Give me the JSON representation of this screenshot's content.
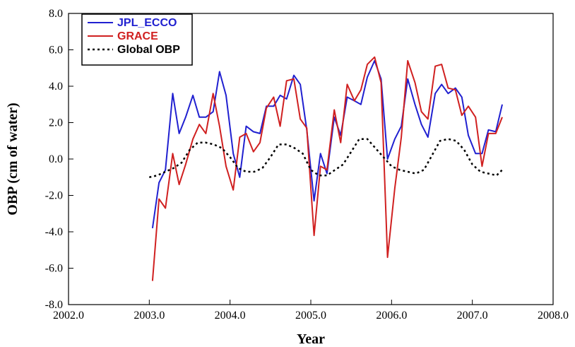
{
  "chart_data": {
    "type": "line",
    "xlabel": "Year",
    "ylabel": "OBP (cm of water)",
    "xlim": [
      2002.0,
      2008.0
    ],
    "ylim": [
      -8.0,
      8.0
    ],
    "x_ticks": [
      "2002.0",
      "2003.0",
      "2004.0",
      "2005.0",
      "2006.0",
      "2007.0",
      "2008.0"
    ],
    "y_ticks": [
      "8.0",
      "6.0",
      "4.0",
      "2.0",
      "0.0",
      "-2.0",
      "-4.0",
      "-6.0",
      "-8.0"
    ],
    "grid": false,
    "legend_position": "top-left",
    "series": [
      {
        "name": "JPL_ECCO",
        "color": "#2020d0",
        "style": "solid",
        "x": [
          2003.04,
          2003.12,
          2003.2,
          2003.29,
          2003.37,
          2003.45,
          2003.54,
          2003.62,
          2003.7,
          2003.79,
          2003.87,
          2003.95,
          2004.04,
          2004.12,
          2004.2,
          2004.29,
          2004.37,
          2004.45,
          2004.54,
          2004.62,
          2004.7,
          2004.79,
          2004.87,
          2004.95,
          2005.04,
          2005.12,
          2005.2,
          2005.29,
          2005.37,
          2005.45,
          2005.54,
          2005.62,
          2005.7,
          2005.79,
          2005.87,
          2005.95,
          2006.04,
          2006.12,
          2006.2,
          2006.29,
          2006.37,
          2006.45,
          2006.54,
          2006.62,
          2006.7,
          2006.79,
          2006.87,
          2006.95,
          2007.04,
          2007.12,
          2007.2,
          2007.29,
          2007.37
        ],
        "y": [
          -3.8,
          -1.3,
          -0.6,
          3.6,
          1.4,
          2.3,
          3.5,
          2.3,
          2.3,
          2.6,
          4.8,
          3.5,
          0.3,
          -1.0,
          1.8,
          1.5,
          1.4,
          2.9,
          2.9,
          3.5,
          3.3,
          4.6,
          4.1,
          1.6,
          -2.3,
          0.3,
          -0.8,
          2.3,
          1.3,
          3.4,
          3.2,
          3.0,
          4.5,
          5.4,
          4.4,
          0.0,
          1.1,
          1.8,
          4.4,
          3.0,
          1.9,
          1.2,
          3.6,
          4.1,
          3.6,
          3.9,
          3.4,
          1.3,
          0.3,
          0.3,
          1.6,
          1.5,
          3.0
        ]
      },
      {
        "name": "GRACE",
        "color": "#d02020",
        "style": "solid",
        "x": [
          2003.04,
          2003.12,
          2003.2,
          2003.29,
          2003.37,
          2003.45,
          2003.54,
          2003.62,
          2003.7,
          2003.79,
          2003.87,
          2003.95,
          2004.04,
          2004.12,
          2004.2,
          2004.29,
          2004.37,
          2004.45,
          2004.54,
          2004.62,
          2004.7,
          2004.79,
          2004.87,
          2004.95,
          2005.04,
          2005.12,
          2005.2,
          2005.29,
          2005.37,
          2005.45,
          2005.54,
          2005.62,
          2005.7,
          2005.79,
          2005.87,
          2005.95,
          2006.04,
          2006.12,
          2006.2,
          2006.29,
          2006.37,
          2006.45,
          2006.54,
          2006.62,
          2006.7,
          2006.79,
          2006.87,
          2006.95,
          2007.04,
          2007.12,
          2007.2,
          2007.29,
          2007.37
        ],
        "y": [
          -6.7,
          -2.2,
          -2.7,
          0.3,
          -1.4,
          -0.3,
          1.1,
          1.9,
          1.4,
          3.6,
          1.8,
          -0.4,
          -1.7,
          1.2,
          1.4,
          0.4,
          0.9,
          2.8,
          3.4,
          1.8,
          4.3,
          4.4,
          2.2,
          1.7,
          -4.2,
          -0.4,
          -0.6,
          2.7,
          0.9,
          4.1,
          3.2,
          3.8,
          5.2,
          5.6,
          4.2,
          -5.4,
          -1.6,
          1.2,
          5.4,
          4.2,
          2.6,
          2.2,
          5.1,
          5.2,
          3.9,
          3.8,
          2.4,
          2.9,
          2.3,
          -0.4,
          1.4,
          1.4,
          2.3
        ]
      },
      {
        "name": "Global OBP",
        "color": "#000000",
        "style": "dotted",
        "x": [
          2003.0,
          2003.1,
          2003.2,
          2003.3,
          2003.4,
          2003.5,
          2003.6,
          2003.7,
          2003.8,
          2003.9,
          2004.0,
          2004.1,
          2004.2,
          2004.3,
          2004.4,
          2004.5,
          2004.6,
          2004.7,
          2004.8,
          2004.9,
          2005.0,
          2005.1,
          2005.2,
          2005.3,
          2005.4,
          2005.5,
          2005.6,
          2005.7,
          2005.8,
          2005.9,
          2006.0,
          2006.1,
          2006.2,
          2006.3,
          2006.4,
          2006.5,
          2006.6,
          2006.7,
          2006.8,
          2006.9,
          2007.0,
          2007.1,
          2007.2,
          2007.3,
          2007.37
        ],
        "y": [
          -1.0,
          -0.9,
          -0.7,
          -0.5,
          -0.2,
          0.5,
          0.9,
          0.9,
          0.8,
          0.6,
          0.1,
          -0.5,
          -0.7,
          -0.7,
          -0.5,
          0.1,
          0.8,
          0.8,
          0.6,
          0.3,
          -0.6,
          -0.9,
          -0.9,
          -0.6,
          -0.3,
          0.4,
          1.1,
          1.1,
          0.6,
          0.1,
          -0.4,
          -0.6,
          -0.7,
          -0.8,
          -0.6,
          0.2,
          1.0,
          1.1,
          1.0,
          0.5,
          -0.3,
          -0.7,
          -0.8,
          -0.9,
          -0.6
        ]
      }
    ]
  }
}
